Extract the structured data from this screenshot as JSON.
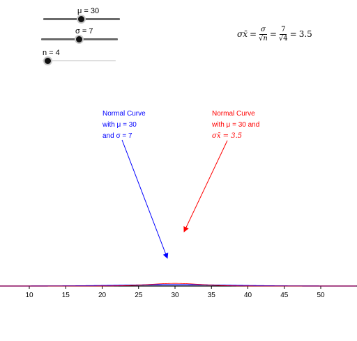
{
  "sliders": {
    "mu": {
      "label": "μ = 30",
      "value": 30,
      "min": 0,
      "max": 60
    },
    "sigma": {
      "label": "σ = 7",
      "value": 7,
      "min": 0,
      "max": 15
    },
    "n": {
      "label": "n = 4",
      "value": 4,
      "min": 1,
      "max": 100
    }
  },
  "formula": {
    "lhs": "σx̄",
    "num1": "σ",
    "den1": "√n",
    "num2": "7",
    "den2": "√4",
    "result": "3.5"
  },
  "annotations": {
    "blue": {
      "line1": "Normal Curve",
      "line2": "with μ = 30",
      "line3": "and σ = 7"
    },
    "red": {
      "line1": "Normal Curve",
      "line2": "with μ = 30 and",
      "line3": "σx̄ = 3.5"
    }
  },
  "colors": {
    "population": "#0000ff",
    "sampling": "#ff0000",
    "axis": "#000000"
  },
  "chart_data": {
    "type": "line",
    "xlim": [
      2,
      55
    ],
    "x_ticks": [
      10,
      15,
      20,
      25,
      30,
      35,
      40,
      45,
      50
    ],
    "series": [
      {
        "mean": 30,
        "sd": 7,
        "color": "#0000ff"
      },
      {
        "mean": 30,
        "sd": 3.5,
        "color": "#ff0000"
      }
    ]
  }
}
